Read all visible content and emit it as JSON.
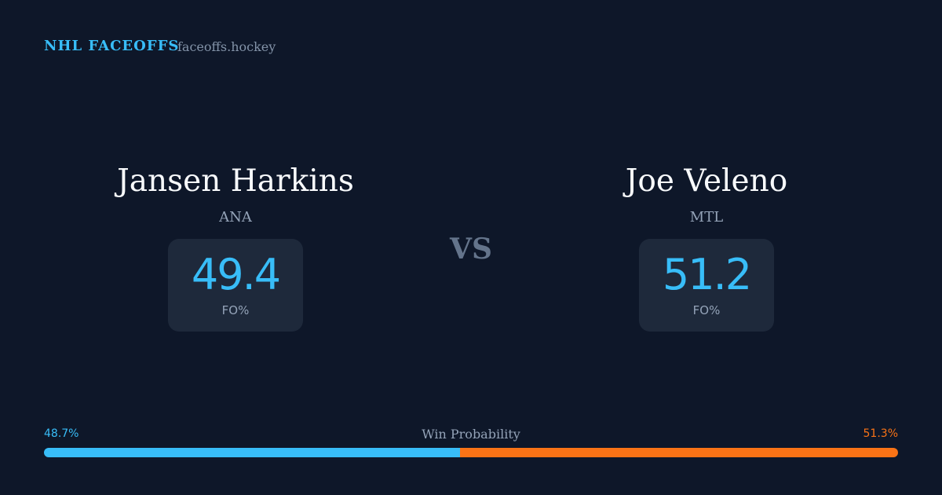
{
  "header": {
    "brand": "NHL FACEOFFS",
    "site": "faceoffs.hockey"
  },
  "vs": "VS",
  "players": [
    {
      "name": "Jansen Harkins",
      "team": "ANA",
      "fo_pct": 49.4,
      "fo_label": "FO%"
    },
    {
      "name": "Joe Veleno",
      "team": "MTL",
      "fo_pct": 51.2,
      "fo_label": "FO%"
    }
  ],
  "win_probability": {
    "title": "Win Probability",
    "values": [
      48.7,
      51.3
    ],
    "value_labels": [
      "48.7%",
      "51.3%"
    ],
    "colors": [
      "#38bdf8",
      "#f97316"
    ]
  }
}
